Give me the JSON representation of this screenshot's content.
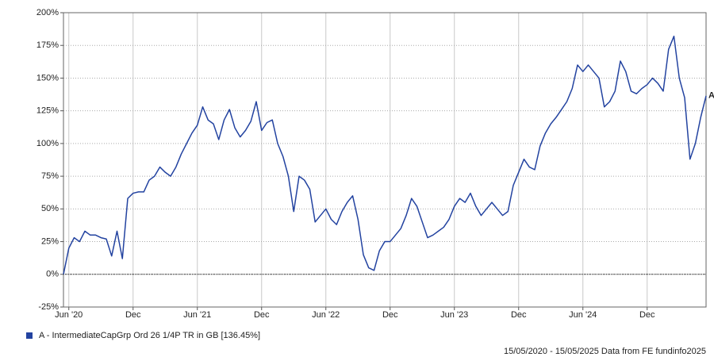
{
  "chart_data": {
    "type": "line",
    "categories": [
      null,
      "Jun '20",
      null,
      null,
      null,
      null,
      null,
      null,
      null,
      null,
      null,
      null,
      null,
      "Dec",
      null,
      null,
      null,
      null,
      null,
      null,
      null,
      null,
      null,
      null,
      null,
      "Jun '21",
      null,
      null,
      null,
      null,
      null,
      null,
      null,
      null,
      null,
      null,
      null,
      "Dec",
      null,
      null,
      null,
      null,
      null,
      null,
      null,
      null,
      null,
      null,
      null,
      "Jun '22",
      null,
      null,
      null,
      null,
      null,
      null,
      null,
      null,
      null,
      null,
      null,
      "Dec",
      null,
      null,
      null,
      null,
      null,
      null,
      null,
      null,
      null,
      null,
      null,
      "Jun '23",
      null,
      null,
      null,
      null,
      null,
      null,
      null,
      null,
      null,
      null,
      null,
      "Dec",
      null,
      null,
      null,
      null,
      null,
      null,
      null,
      null,
      null,
      null,
      null,
      "Jun '24",
      null,
      null,
      null,
      null,
      null,
      null,
      null,
      null,
      null,
      null,
      null,
      "Dec",
      null,
      null,
      null,
      null,
      null,
      null,
      null,
      null,
      null,
      null,
      null
    ],
    "series": [
      {
        "name": "A - IntermediateCapGrp Ord 26 1/4P TR in GB [136.45%]",
        "color": "#2343a0",
        "values": [
          0,
          20,
          28,
          25,
          33,
          30,
          30,
          28,
          27,
          14,
          33,
          12,
          58,
          62,
          63,
          63,
          72,
          75,
          82,
          78,
          75,
          82,
          92,
          100,
          108,
          114,
          128,
          118,
          115,
          103,
          118,
          126,
          112,
          105,
          110,
          117,
          132,
          110,
          116,
          118,
          100,
          90,
          75,
          48,
          75,
          72,
          65,
          40,
          45,
          50,
          42,
          38,
          48,
          55,
          60,
          42,
          15,
          5,
          3,
          18,
          25,
          25,
          30,
          35,
          45,
          58,
          52,
          40,
          28,
          30,
          33,
          36,
          42,
          52,
          58,
          55,
          62,
          52,
          45,
          50,
          55,
          50,
          45,
          48,
          68,
          78,
          88,
          82,
          80,
          98,
          108,
          115,
          120,
          126,
          132,
          142,
          160,
          155,
          160,
          155,
          150,
          128,
          132,
          140,
          163,
          155,
          140,
          138,
          142,
          145,
          150,
          146,
          140,
          172,
          182,
          150,
          135,
          88,
          100,
          120,
          136.45
        ]
      }
    ],
    "end_label": "A",
    "ylim": [
      -25,
      200
    ],
    "yticks": [
      {
        "value": -25,
        "label": "-25%"
      },
      {
        "value": 0,
        "label": "0%"
      },
      {
        "value": 25,
        "label": "25%"
      },
      {
        "value": 50,
        "label": "50%"
      },
      {
        "value": 75,
        "label": "75%"
      },
      {
        "value": 100,
        "label": "100%"
      },
      {
        "value": 125,
        "label": "125%"
      },
      {
        "value": 150,
        "label": "150%"
      },
      {
        "value": 175,
        "label": "175%"
      },
      {
        "value": 200,
        "label": "200%"
      }
    ],
    "grid": true,
    "zero_line": true,
    "footer": "15/05/2020 - 15/05/2025 Data from FE fundinfo2025"
  }
}
